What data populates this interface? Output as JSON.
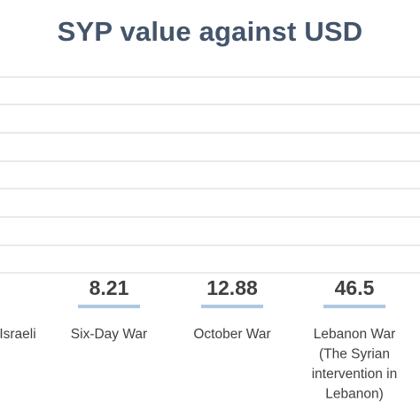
{
  "chart_data": {
    "type": "bar",
    "title": "SYP value against USD",
    "categories": [
      "Israeli",
      "Six-Day War",
      "October War",
      "Lebanon War (The Syrian intervention in Lebanon)"
    ],
    "category_lines": [
      [
        "Israeli"
      ],
      [
        "Six-Day War"
      ],
      [
        "October War"
      ],
      [
        "Lebanon War",
        "(The Syrian",
        "intervention in",
        "Lebanon)"
      ]
    ],
    "values": [
      null,
      8.21,
      12.88,
      46.5
    ],
    "data_labels": [
      "",
      "8.21",
      "12.88",
      "46.5"
    ],
    "xlabel": "",
    "ylabel": "",
    "grid": true,
    "colors": {
      "bar": "#aec8e0",
      "grid": "#e4e4e4",
      "text": "#404040",
      "title": "#44546a"
    }
  }
}
